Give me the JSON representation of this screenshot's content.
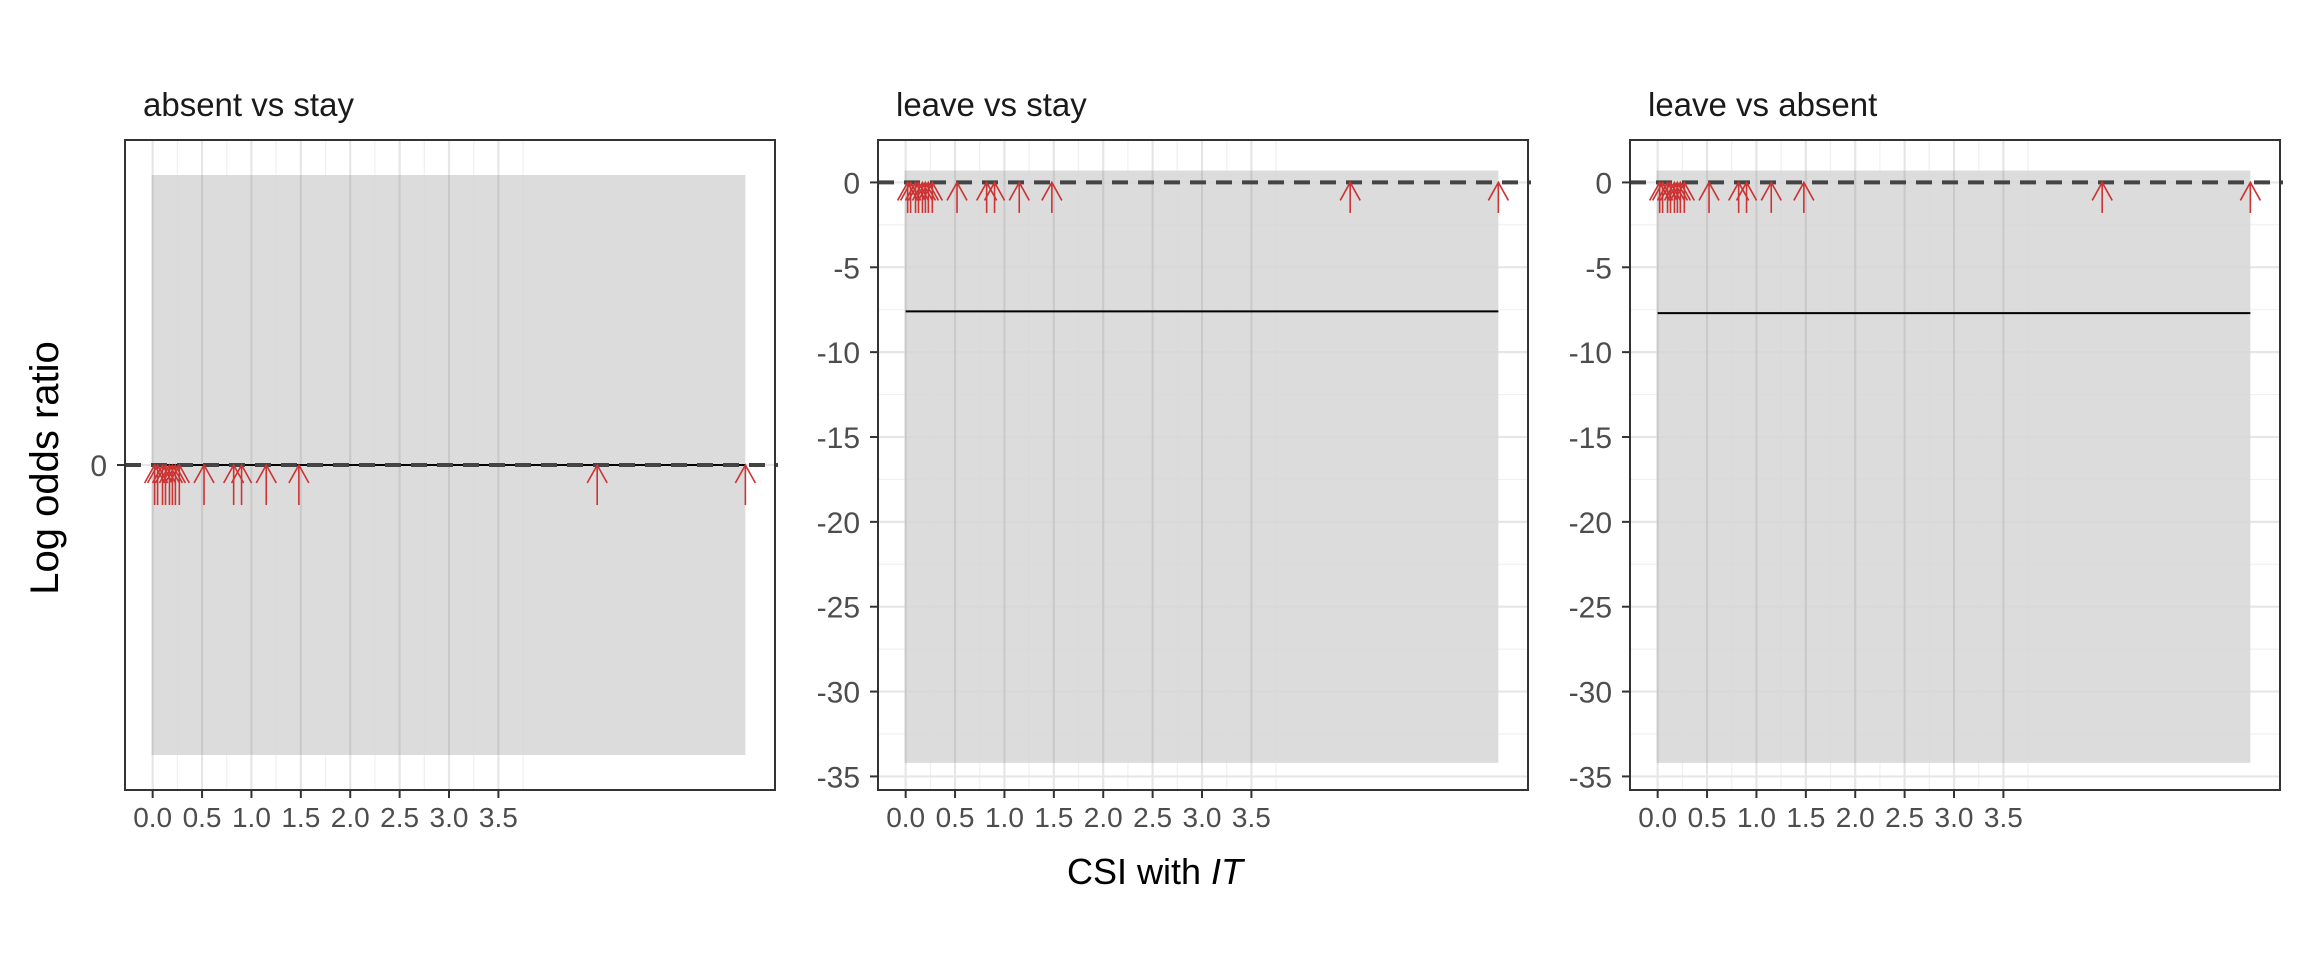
{
  "chart_data": {
    "type": "line",
    "xlabel": "CSI with ",
    "xlabel_italic": "IT",
    "ylabel": "Log odds ratio",
    "colors": {
      "ribbon": "#d6d6d6",
      "line": "#000000",
      "reference": "#444444",
      "rug": "#cc3333",
      "panel_border": "#333333",
      "grid": "#e6e6e6"
    },
    "x_ticks": [
      0.0,
      0.5,
      1.0,
      1.5,
      2.0,
      2.5,
      3.0,
      3.5
    ],
    "x_tick_labels": [
      "0.0",
      "0.5",
      "1.0",
      "1.5",
      "2.0",
      "2.5",
      "3.0",
      "3.5"
    ],
    "xlim": [
      -0.28,
      6.3
    ],
    "x_range": [
      0.0,
      6.0
    ],
    "rug_x": [
      0.02,
      0.05,
      0.1,
      0.13,
      0.17,
      0.2,
      0.23,
      0.27,
      0.52,
      0.82,
      0.9,
      1.15,
      1.48,
      4.5,
      6.0
    ],
    "panels": [
      {
        "title": "absent vs stay",
        "ylim": [
          -0.65,
          0.65
        ],
        "y_ticks": [
          0
        ],
        "y_tick_labels": [
          "0"
        ],
        "ribbon": [
          -0.58,
          0.58
        ],
        "line_y": 0,
        "reference_y": 0,
        "arrow_length": 0.08
      },
      {
        "title": "leave vs stay",
        "ylim": [
          -35.8,
          2.5
        ],
        "y_ticks": [
          0,
          -5,
          -10,
          -15,
          -20,
          -25,
          -30,
          -35
        ],
        "y_tick_labels": [
          "0",
          "-5",
          "-10",
          "-15",
          "-20",
          "-25",
          "-30",
          "-35"
        ],
        "ribbon": [
          -34.2,
          0.7
        ],
        "line_y": -7.6,
        "reference_y": 0,
        "arrow_length": 1.8
      },
      {
        "title": "leave vs absent",
        "ylim": [
          -35.8,
          2.5
        ],
        "y_ticks": [
          0,
          -5,
          -10,
          -15,
          -20,
          -25,
          -30,
          -35
        ],
        "y_tick_labels": [
          "0",
          "-5",
          "-10",
          "-15",
          "-20",
          "-25",
          "-30",
          "-35"
        ],
        "ribbon": [
          -34.2,
          0.7
        ],
        "line_y": -7.7,
        "reference_y": 0,
        "arrow_length": 1.8
      }
    ]
  }
}
